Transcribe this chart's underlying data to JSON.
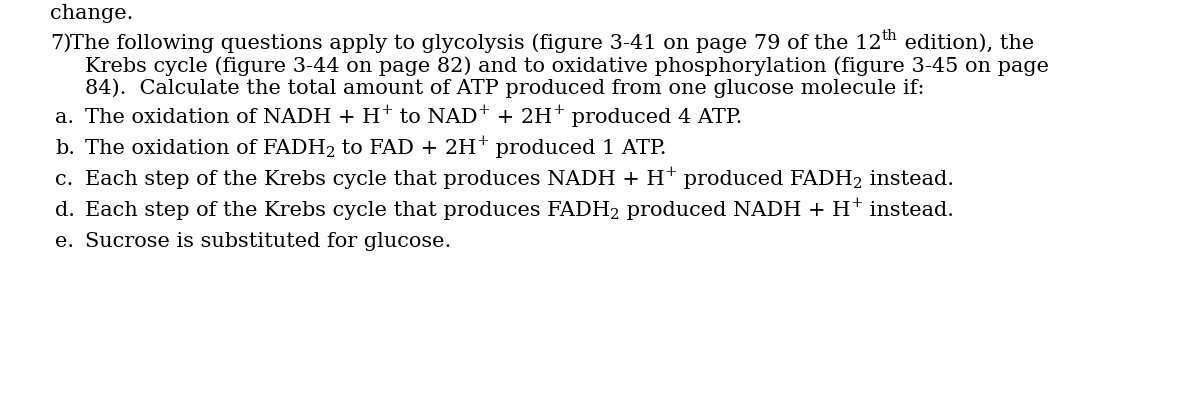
{
  "background_color": "#ffffff",
  "top_text": "change.",
  "items": [
    {
      "label": "a.",
      "parts": [
        {
          "text": "The oxidation of NADH + H",
          "style": "normal"
        },
        {
          "text": "+",
          "style": "super"
        },
        {
          "text": " to NAD",
          "style": "normal"
        },
        {
          "text": "+",
          "style": "super"
        },
        {
          "text": " + 2H",
          "style": "normal"
        },
        {
          "text": "+",
          "style": "super"
        },
        {
          "text": " produced 4 ATP.",
          "style": "normal"
        }
      ]
    },
    {
      "label": "b.",
      "parts": [
        {
          "text": "The oxidation of FADH",
          "style": "normal"
        },
        {
          "text": "2",
          "style": "sub"
        },
        {
          "text": " to FAD + 2H",
          "style": "normal"
        },
        {
          "text": "+",
          "style": "super"
        },
        {
          "text": " produced 1 ATP.",
          "style": "normal"
        }
      ]
    },
    {
      "label": "c.",
      "parts": [
        {
          "text": "Each step of the Krebs cycle that produces NADH + H",
          "style": "normal"
        },
        {
          "text": "+",
          "style": "super"
        },
        {
          "text": " produced FADH",
          "style": "normal"
        },
        {
          "text": "2",
          "style": "sub"
        },
        {
          "text": " instead.",
          "style": "normal"
        }
      ]
    },
    {
      "label": "d.",
      "parts": [
        {
          "text": "Each step of the Krebs cycle that produces FADH",
          "style": "normal"
        },
        {
          "text": "2",
          "style": "sub"
        },
        {
          "text": " produced NADH + H",
          "style": "normal"
        },
        {
          "text": "+",
          "style": "super"
        },
        {
          "text": " instead.",
          "style": "normal"
        }
      ]
    },
    {
      "label": "e.",
      "parts": [
        {
          "text": "Sucrose is substituted for glucose.",
          "style": "normal"
        }
      ]
    }
  ],
  "font_size": 15.0,
  "font_family": "DejaVu Serif"
}
